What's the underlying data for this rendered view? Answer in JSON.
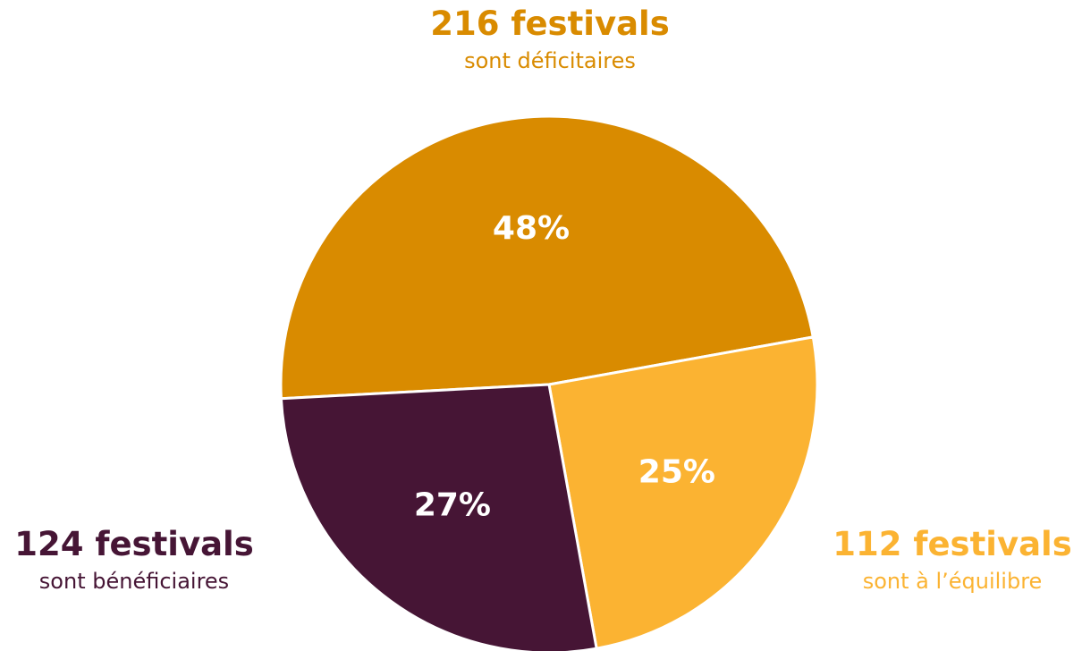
{
  "chart_data": {
    "type": "pie",
    "slices": [
      {
        "label": "déficitaires",
        "value": 48,
        "value_label": "48%",
        "count_label": "216 festivals",
        "description": "sont déficitaires",
        "color": "#D98B00"
      },
      {
        "label": "à l'équilibre",
        "value": 25,
        "value_label": "25%",
        "count_label": "112 festivals",
        "description": "sont à l’équilibre",
        "color": "#FBB332"
      },
      {
        "label": "bénéficiaires",
        "value": 27,
        "value_label": "27%",
        "count_label": "124 festivals",
        "description": "sont bénéficiaires",
        "color": "#461535"
      }
    ]
  }
}
